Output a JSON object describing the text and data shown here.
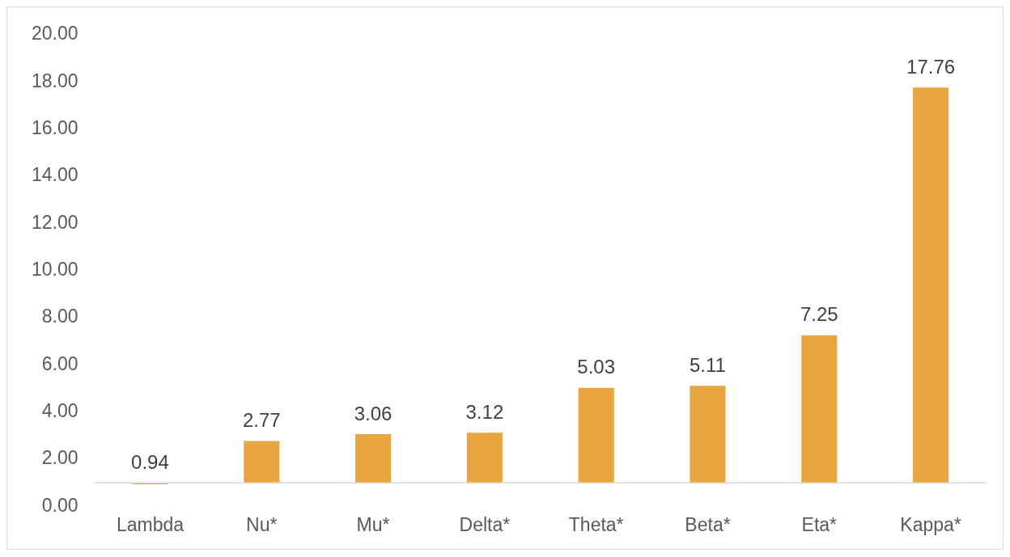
{
  "chart_data": {
    "type": "bar",
    "categories": [
      "Lambda",
      "Nu*",
      "Mu*",
      "Delta*",
      "Theta*",
      "Beta*",
      "Eta*",
      "Kappa*"
    ],
    "base": [
      1,
      1,
      1,
      1,
      1,
      1,
      1,
      1
    ],
    "values": [
      -0.06,
      1.77,
      2.06,
      2.12,
      4.03,
      4.11,
      6.25,
      16.76
    ],
    "value_labels": [
      "0.94",
      "2.77",
      "3.06",
      "3.12",
      "5.03",
      "5.11",
      "7.25",
      "17.76"
    ],
    "color": "#eaa63e",
    "ylim": [
      0,
      20
    ],
    "yticks": [
      {
        "value": 0,
        "label": "0.00"
      },
      {
        "value": 2,
        "label": "2.00"
      },
      {
        "value": 4,
        "label": "4.00"
      },
      {
        "value": 6,
        "label": "6.00"
      },
      {
        "value": 8,
        "label": "8.00"
      },
      {
        "value": 10,
        "label": "10.00"
      },
      {
        "value": 12,
        "label": "12.00"
      },
      {
        "value": 14,
        "label": "14.00"
      },
      {
        "value": 16,
        "label": "16.00"
      },
      {
        "value": 18,
        "label": "18.00"
      },
      {
        "value": 20,
        "label": "20.00"
      }
    ],
    "grid": false,
    "legend": false
  }
}
